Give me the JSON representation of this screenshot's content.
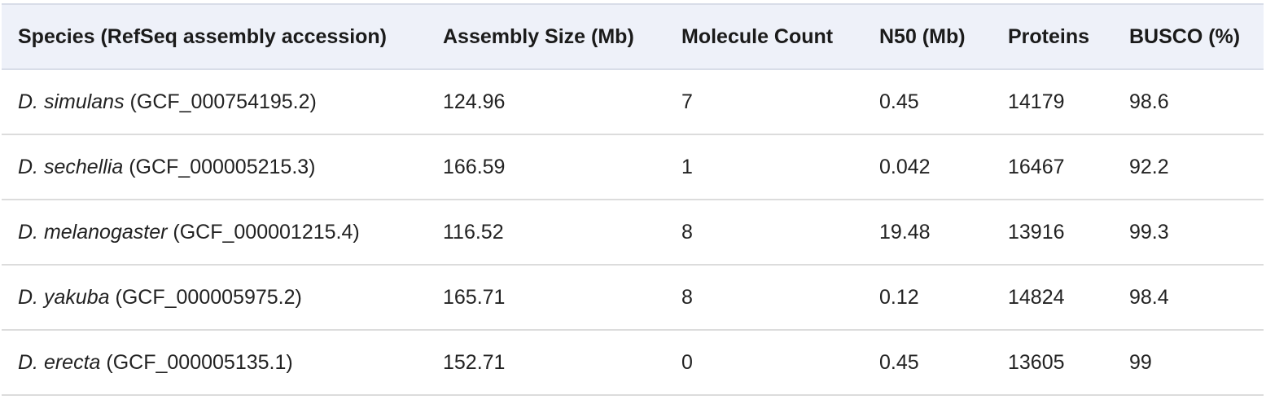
{
  "table": {
    "headers": [
      "Species (RefSeq assembly accession)",
      "Assembly Size (Mb)",
      "Molecule Count",
      "N50 (Mb)",
      "Proteins",
      "BUSCO (%)"
    ],
    "rows": [
      {
        "species": "D. simulans",
        "accession": "(GCF_000754195.2)",
        "assembly_size": "124.96",
        "molecule_count": "7",
        "n50": "0.45",
        "proteins": "14179",
        "busco": "98.6"
      },
      {
        "species": "D. sechellia",
        "accession": "(GCF_000005215.3)",
        "assembly_size": "166.59",
        "molecule_count": "1",
        "n50": "0.042",
        "proteins": "16467",
        "busco": "92.2"
      },
      {
        "species": "D. melanogaster",
        "accession": "(GCF_000001215.4)",
        "assembly_size": "116.52",
        "molecule_count": "8",
        "n50": "19.48",
        "proteins": "13916",
        "busco": "99.3"
      },
      {
        "species": "D. yakuba",
        "accession": "(GCF_000005975.2)",
        "assembly_size": "165.71",
        "molecule_count": "8",
        "n50": "0.12",
        "proteins": "14824",
        "busco": "98.4"
      },
      {
        "species": "D. erecta",
        "accession": "(GCF_000005135.1)",
        "assembly_size": "152.71",
        "molecule_count": "0",
        "n50": "0.45",
        "proteins": "13605",
        "busco": "99"
      }
    ]
  },
  "colors": {
    "header_background": "#eef1f9",
    "row_divider": "#dcdcdc",
    "text": "#1b1b1b"
  }
}
